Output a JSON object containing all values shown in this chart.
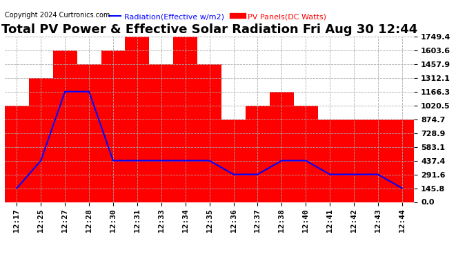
{
  "title": "Total PV Power & Effective Solar Radiation Fri Aug 30 12:44",
  "copyright": "Copyright 2024 Curtronics.com",
  "legend_radiation": "Radiation(Effective w/m2)",
  "legend_pv": "PV Panels(DC Watts)",
  "x_labels": [
    "12:17",
    "12:25",
    "12:27",
    "12:28",
    "12:30",
    "12:31",
    "12:33",
    "12:34",
    "12:35",
    "12:36",
    "12:37",
    "12:38",
    "12:40",
    "12:41",
    "12:42",
    "12:43",
    "12:44"
  ],
  "pv_bars": [
    1020.5,
    1312.1,
    1603.6,
    1457.9,
    1603.6,
    1749.4,
    1457.9,
    1749.4,
    1457.9,
    874.7,
    1020.5,
    1166.3,
    1020.5,
    874.7,
    874.7,
    874.7,
    874.7
  ],
  "radiation_line": [
    145.8,
    437.4,
    1166.3,
    1166.3,
    437.4,
    437.4,
    437.4,
    437.4,
    437.4,
    291.6,
    291.6,
    437.4,
    437.4,
    291.6,
    291.6,
    291.6,
    145.8
  ],
  "bar_color": "#ff0000",
  "line_color": "#0000ff",
  "background_color": "#ffffff",
  "grid_color": "#aaaaaa",
  "ylim_max": 1749.4,
  "yticks": [
    0.0,
    145.8,
    291.6,
    437.4,
    583.1,
    728.9,
    874.7,
    1020.5,
    1166.3,
    1312.1,
    1457.9,
    1603.6,
    1749.4
  ],
  "title_fontsize": 13,
  "tick_fontsize": 8,
  "legend_fontsize": 8,
  "copyright_fontsize": 7,
  "line_color_radiation": "#0000ff",
  "line_color_pv": "#ff0000"
}
